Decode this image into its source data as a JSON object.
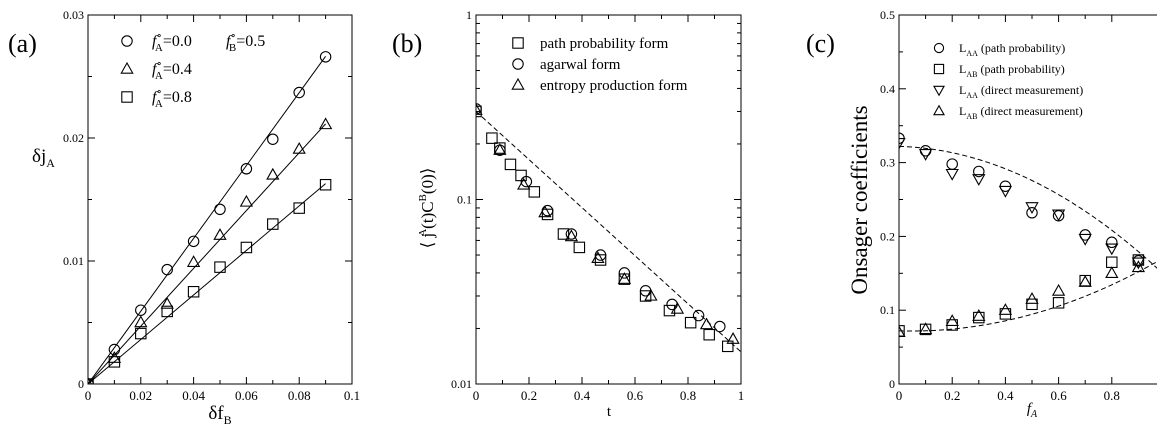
{
  "chart_data": [
    {
      "panel": "(a)",
      "type": "scatter",
      "xlabel": "δf",
      "xlabel_sub": "B",
      "ylabel": "δj",
      "ylabel_sub": "A",
      "xlim": [
        0,
        0.1
      ],
      "ylim": [
        0,
        0.03
      ],
      "xticks": [
        0,
        0.02,
        0.04,
        0.06,
        0.08,
        0.1
      ],
      "xtick_labels": [
        "0",
        "0.02",
        "0.04",
        "0.06",
        "0.08",
        "0.1"
      ],
      "yticks": [
        0,
        0.01,
        0.02,
        0.03
      ],
      "ytick_labels": [
        "0",
        "0.01",
        "0.02",
        "0.03"
      ],
      "legend_position": "top-left",
      "legend_extra": {
        "text": "f",
        "sup": "∘",
        "sub": "B",
        "value": "=0.5"
      },
      "series": [
        {
          "name": "=0.0",
          "label_main": "f",
          "label_sup": "∘",
          "label_sub": "A",
          "marker": "circle",
          "fit_slope": 0.296,
          "x": [
            0,
            0.01,
            0.02,
            0.03,
            0.04,
            0.05,
            0.06,
            0.07,
            0.08,
            0.09
          ],
          "y": [
            0,
            0.0028,
            0.006,
            0.0093,
            0.0116,
            0.0142,
            0.0175,
            0.0199,
            0.0237,
            0.0266
          ]
        },
        {
          "name": "=0.4",
          "label_main": "f",
          "label_sup": "∘",
          "label_sub": "A",
          "marker": "triangle-up",
          "fit_slope": 0.235,
          "x": [
            0,
            0.01,
            0.02,
            0.03,
            0.04,
            0.05,
            0.06,
            0.07,
            0.08,
            0.09
          ],
          "y": [
            0,
            0.0021,
            0.005,
            0.0065,
            0.0099,
            0.0121,
            0.0148,
            0.017,
            0.0191,
            0.0211
          ]
        },
        {
          "name": "=0.8",
          "label_main": "f",
          "label_sup": "∘",
          "label_sub": "A",
          "marker": "square",
          "fit_slope": 0.181,
          "x": [
            0,
            0.01,
            0.02,
            0.03,
            0.04,
            0.05,
            0.06,
            0.07,
            0.08,
            0.09
          ],
          "y": [
            0,
            0.0018,
            0.0041,
            0.0059,
            0.0075,
            0.0095,
            0.0111,
            0.013,
            0.0143,
            0.0162
          ]
        }
      ]
    },
    {
      "panel": "(b)",
      "type": "scatter",
      "yscale": "log",
      "xlabel": "t",
      "ylabel": "⟨ j",
      "ylabel_sup_a": "A",
      "ylabel_mid": "(t)C",
      "ylabel_sup_b": "B",
      "ylabel_end": "(0)⟩",
      "xlim": [
        0,
        1
      ],
      "ylim": [
        0.01,
        1
      ],
      "xticks": [
        0,
        0.2,
        0.4,
        0.6,
        0.8,
        1
      ],
      "xtick_labels": [
        "0",
        "0.2",
        "0.4",
        "0.6",
        "0.8",
        "1"
      ],
      "yticks": [
        0.01,
        0.1,
        1
      ],
      "ytick_labels": [
        "0.01",
        "0.1",
        "1"
      ],
      "legend_position": "top-right",
      "fit": {
        "type": "exponential",
        "a": 0.3,
        "k": 3.0
      },
      "series": [
        {
          "name": "path probability form",
          "marker": "square",
          "x": [
            0,
            0.06,
            0.09,
            0.13,
            0.17,
            0.22,
            0.27,
            0.33,
            0.39,
            0.47,
            0.56,
            0.64,
            0.73,
            0.81,
            0.88,
            0.95
          ],
          "y": [
            0.3,
            0.215,
            0.19,
            0.155,
            0.135,
            0.11,
            0.083,
            0.065,
            0.055,
            0.047,
            0.037,
            0.03,
            0.025,
            0.0215,
            0.0185,
            0.016
          ]
        },
        {
          "name": "agarwal form",
          "marker": "circle",
          "x": [
            0,
            0.09,
            0.19,
            0.27,
            0.36,
            0.47,
            0.56,
            0.64,
            0.74,
            0.84,
            0.92
          ],
          "y": [
            0.31,
            0.185,
            0.125,
            0.087,
            0.065,
            0.05,
            0.04,
            0.032,
            0.027,
            0.0235,
            0.0205
          ]
        },
        {
          "name": "entropy production form",
          "marker": "triangle-up",
          "x": [
            0,
            0.09,
            0.18,
            0.26,
            0.36,
            0.46,
            0.56,
            0.66,
            0.76,
            0.87,
            0.97
          ],
          "y": [
            0.305,
            0.185,
            0.12,
            0.085,
            0.063,
            0.048,
            0.037,
            0.03,
            0.0255,
            0.021,
            0.0175
          ]
        }
      ]
    },
    {
      "panel": "(c)",
      "type": "scatter",
      "xlabel": "f",
      "xlabel_sub": "A",
      "ylabel": "Onsager coefficients",
      "xlim": [
        0,
        1
      ],
      "ylim": [
        0,
        0.5
      ],
      "xticks": [
        0,
        0.2,
        0.4,
        0.6,
        0.8
      ],
      "xtick_labels": [
        "0",
        "0.2",
        "0.4",
        "0.6",
        "0.8"
      ],
      "yticks": [
        0,
        0.1,
        0.2,
        0.3,
        0.4,
        0.5
      ],
      "ytick_labels": [
        "0",
        "0.1",
        "0.2",
        "0.3",
        "0.4",
        "0.5"
      ],
      "legend_position": "top-right",
      "fits": [
        {
          "type": "quadratic",
          "a": 0.322,
          "b": -0.01,
          "c": -0.165
        },
        {
          "type": "quadratic",
          "a": 0.072,
          "b": -0.01,
          "c": 0.11
        }
      ],
      "series": [
        {
          "name": "(path probability)",
          "label_main": "L",
          "label_sub": "AA",
          "marker": "circle",
          "x": [
            0,
            0.1,
            0.2,
            0.3,
            0.4,
            0.5,
            0.6,
            0.7,
            0.8,
            0.9,
            1.0
          ],
          "y": [
            0.333,
            0.316,
            0.298,
            0.288,
            0.268,
            0.232,
            0.228,
            0.202,
            0.192,
            0.167,
            0.155
          ]
        },
        {
          "name": "(path probability)",
          "label_main": "L",
          "label_sub": "AB",
          "marker": "square",
          "x": [
            0,
            0.1,
            0.2,
            0.3,
            0.4,
            0.5,
            0.6,
            0.7,
            0.8,
            0.9,
            1.0
          ],
          "y": [
            0.072,
            0.074,
            0.08,
            0.09,
            0.095,
            0.108,
            0.11,
            0.14,
            0.165,
            0.168,
            0.17
          ]
        },
        {
          "name": "(direct measurement)",
          "label_main": "L",
          "label_sub": "AA",
          "marker": "triangle-down",
          "x": [
            0,
            0.1,
            0.2,
            0.3,
            0.4,
            0.5,
            0.6,
            0.7,
            0.8,
            0.9
          ],
          "y": [
            0.327,
            0.312,
            0.285,
            0.278,
            0.262,
            0.24,
            0.23,
            0.197,
            0.184,
            0.165
          ]
        },
        {
          "name": "(direct measurement)",
          "label_main": "L",
          "label_sub": "AB",
          "marker": "triangle-up",
          "x": [
            0,
            0.1,
            0.2,
            0.3,
            0.4,
            0.5,
            0.6,
            0.7,
            0.8,
            0.9
          ],
          "y": [
            0.07,
            0.074,
            0.085,
            0.092,
            0.1,
            0.115,
            0.126,
            0.138,
            0.15,
            0.158
          ]
        }
      ]
    }
  ]
}
